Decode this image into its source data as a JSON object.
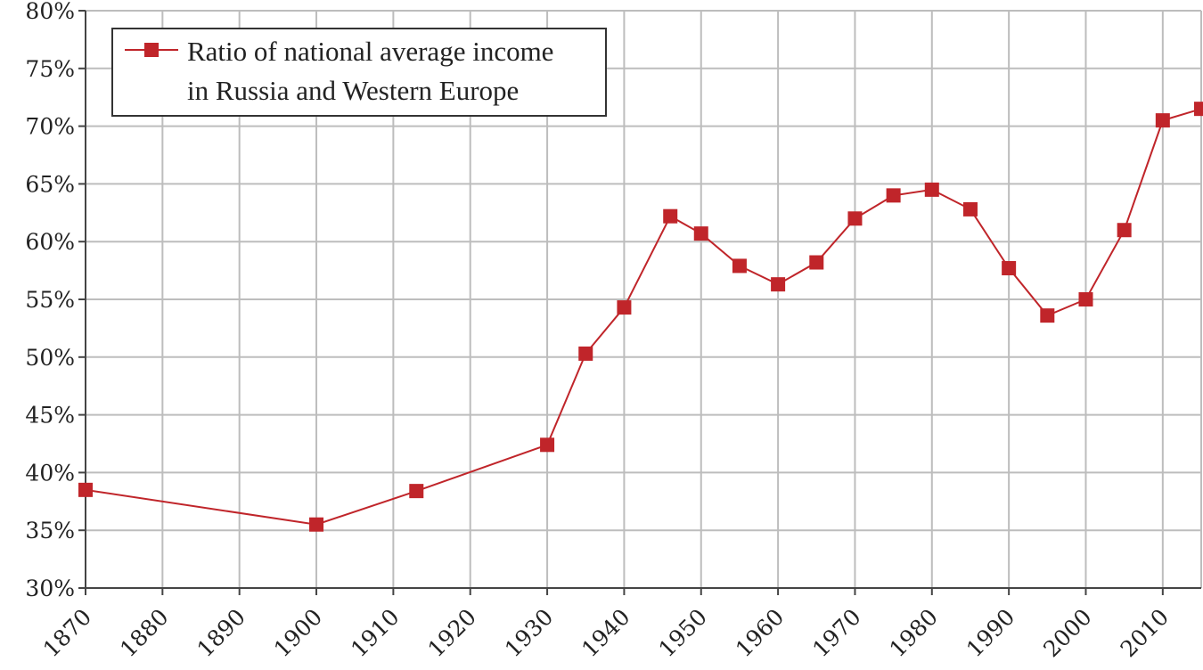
{
  "chart_data": {
    "type": "line",
    "legend": {
      "label_lines": [
        "Ratio of national average income",
        "in Russia and Western Europe"
      ],
      "position": "top-left"
    },
    "xlim": [
      1870,
      2015
    ],
    "ylim": [
      0.3,
      0.8
    ],
    "x_ticks": [
      1870,
      1880,
      1890,
      1900,
      1910,
      1920,
      1930,
      1940,
      1950,
      1960,
      1970,
      1980,
      1990,
      2000,
      2010
    ],
    "x_tick_labels": [
      "1870",
      "1880",
      "1890",
      "1900",
      "1910",
      "1920",
      "1930",
      "1940",
      "1950",
      "1960",
      "1970",
      "1980",
      "1990",
      "2000",
      "2010"
    ],
    "y_ticks": [
      0.3,
      0.35,
      0.4,
      0.45,
      0.5,
      0.55,
      0.6,
      0.65,
      0.7,
      0.75,
      0.8
    ],
    "y_tick_labels": [
      "30%",
      "35%",
      "40%",
      "45%",
      "50%",
      "55%",
      "60%",
      "65%",
      "70%",
      "75%",
      "80%"
    ],
    "grid": true,
    "series": [
      {
        "name": "Ratio of national average income in Russia and Western Europe",
        "color": "#c0252a",
        "marker": "square",
        "x": [
          1870,
          1900,
          1913,
          1930,
          1935,
          1940,
          1946,
          1950,
          1955,
          1960,
          1965,
          1970,
          1975,
          1980,
          1985,
          1990,
          1995,
          2000,
          2005,
          2010,
          2015
        ],
        "y": [
          0.385,
          0.355,
          0.384,
          0.424,
          0.503,
          0.543,
          0.622,
          0.607,
          0.579,
          0.563,
          0.582,
          0.62,
          0.64,
          0.645,
          0.628,
          0.577,
          0.536,
          0.55,
          0.61,
          0.705,
          0.715
        ]
      }
    ]
  }
}
